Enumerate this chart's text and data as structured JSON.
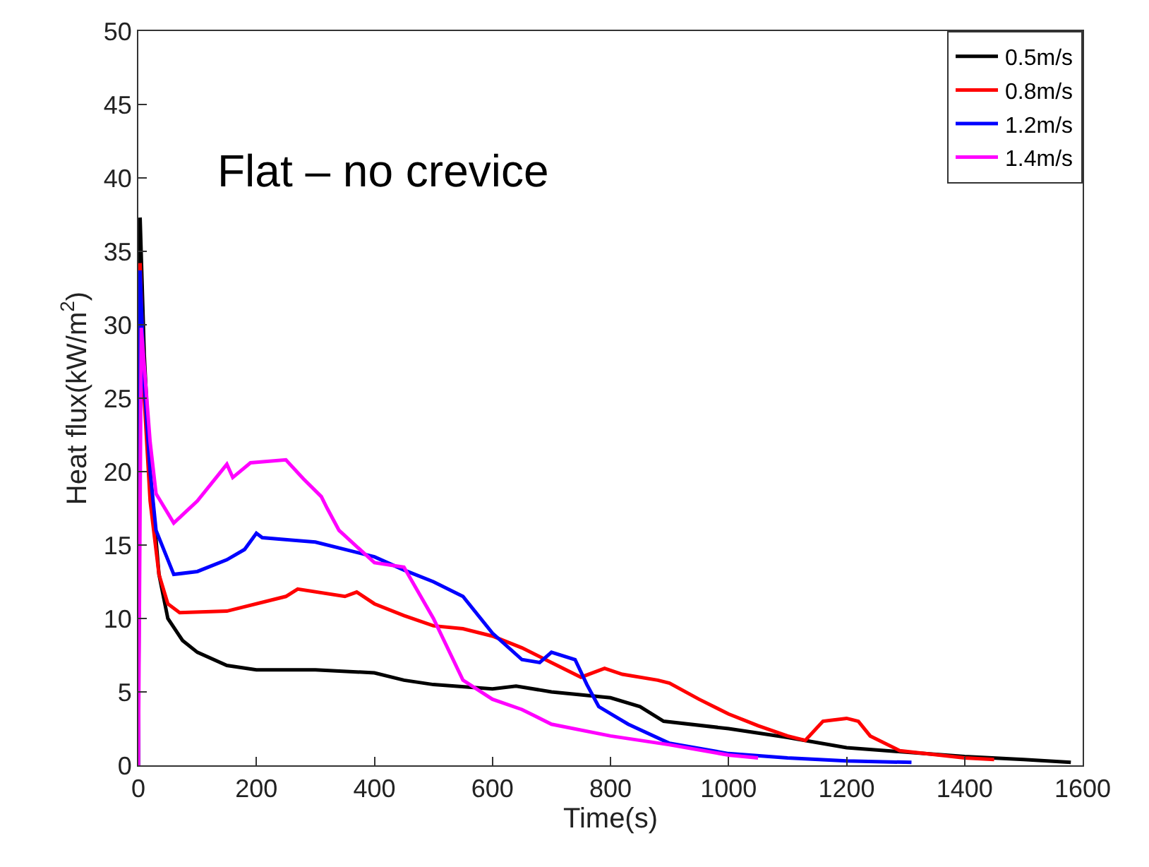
{
  "chart_data": {
    "type": "line",
    "xlabel": "Time(s)",
    "ylabel": "Heat flux(kW/m$^{2}$)",
    "annotations": [
      "Flat – no crevice"
    ],
    "xlim": [
      0,
      1600
    ],
    "ylim": [
      0,
      50
    ],
    "xticks": [
      0,
      200,
      400,
      600,
      800,
      1000,
      1200,
      1400,
      1600
    ],
    "yticks": [
      0,
      5,
      10,
      15,
      20,
      25,
      30,
      35,
      40,
      45,
      50
    ],
    "legend": "top right",
    "marker": "none",
    "line_style": "solid",
    "series": [
      {
        "name": "0.5m/s",
        "color": "#000000",
        "x": [
          0,
          3,
          10,
          20,
          35,
          50,
          75,
          100,
          150,
          200,
          300,
          400,
          450,
          500,
          600,
          640,
          700,
          800,
          850,
          890,
          1000,
          1100,
          1200,
          1300,
          1400,
          1500,
          1580
        ],
        "values": [
          0,
          37.3,
          28,
          20,
          13,
          10,
          8.5,
          7.7,
          6.8,
          6.5,
          6.5,
          6.3,
          5.8,
          5.5,
          5.2,
          5.4,
          5,
          4.6,
          4,
          3,
          2.5,
          1.9,
          1.2,
          0.9,
          0.6,
          0.4,
          0.2
        ]
      },
      {
        "name": "0.8m/s",
        "color": "#ff0000",
        "x": [
          0,
          3,
          10,
          20,
          35,
          50,
          70,
          150,
          250,
          270,
          350,
          370,
          400,
          450,
          500,
          550,
          600,
          650,
          700,
          750,
          790,
          820,
          880,
          900,
          950,
          1000,
          1050,
          1100,
          1130,
          1160,
          1200,
          1220,
          1240,
          1290,
          1400,
          1450
        ],
        "values": [
          0,
          34.2,
          25,
          18,
          13,
          11,
          10.4,
          10.5,
          11.5,
          12,
          11.5,
          11.8,
          11,
          10.2,
          9.5,
          9.3,
          8.8,
          8,
          7,
          6,
          6.6,
          6.2,
          5.8,
          5.6,
          4.5,
          3.5,
          2.7,
          2,
          1.7,
          3,
          3.2,
          3,
          2,
          1,
          0.5,
          0.4
        ]
      },
      {
        "name": "1.2m/s",
        "color": "#0000ff",
        "x": [
          0,
          3,
          10,
          20,
          30,
          60,
          100,
          150,
          180,
          200,
          210,
          300,
          400,
          450,
          500,
          550,
          600,
          650,
          680,
          700,
          740,
          760,
          780,
          830,
          900,
          1000,
          1100,
          1200,
          1310
        ],
        "values": [
          0,
          33.7,
          26,
          20,
          16,
          13,
          13.2,
          14,
          14.7,
          15.8,
          15.5,
          15.2,
          14.2,
          13.3,
          12.5,
          11.5,
          9,
          7.2,
          7,
          7.7,
          7.2,
          5.5,
          4,
          2.8,
          1.5,
          0.8,
          0.5,
          0.3,
          0.2
        ]
      },
      {
        "name": "1.4m/s",
        "color": "#ff00ff",
        "x": [
          0,
          5,
          20,
          30,
          60,
          100,
          150,
          160,
          190,
          250,
          280,
          310,
          320,
          340,
          400,
          450,
          500,
          550,
          600,
          650,
          700,
          800,
          900,
          1000,
          1050
        ],
        "values": [
          0,
          29.8,
          22,
          18.5,
          16.5,
          18,
          20.5,
          19.6,
          20.6,
          20.8,
          19.5,
          18.3,
          17.5,
          16,
          13.8,
          13.5,
          10,
          5.8,
          4.5,
          3.8,
          2.8,
          2,
          1.4,
          0.7,
          0.5
        ]
      }
    ]
  }
}
